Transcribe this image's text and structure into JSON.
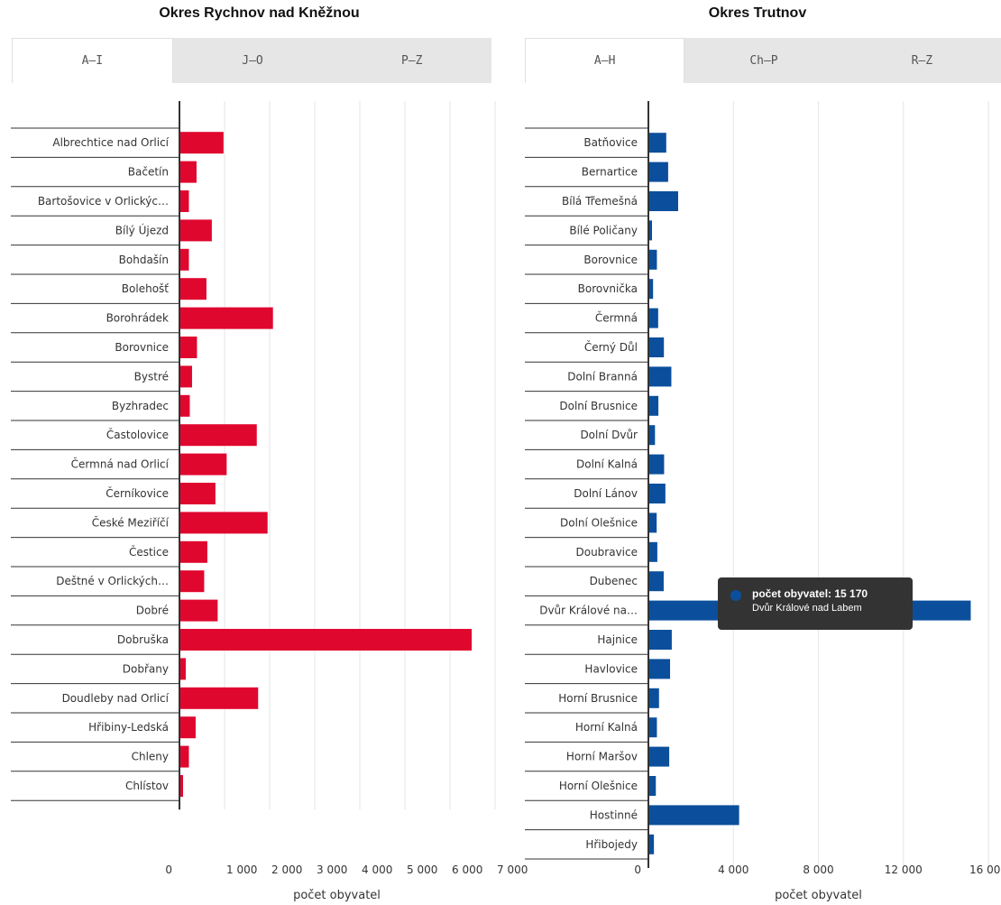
{
  "panels": [
    {
      "title": "Okres Rychnov nad Kněžnou",
      "tabs": [
        "A–I",
        "J–O",
        "P–Z"
      ],
      "active_tab": 0
    },
    {
      "title": "Okres Trutnov",
      "tabs": [
        "A–H",
        "Ch–P",
        "R–Z"
      ],
      "active_tab": 0
    }
  ],
  "tooltip": {
    "label": "počet obyvatel: 15 170",
    "name": "Dvůr Králové nad Labem"
  },
  "chart_data": [
    {
      "type": "bar",
      "orientation": "horizontal",
      "title": "Okres Rychnov nad Kněžnou",
      "xlabel": "počet obyvatel",
      "xlim": [
        0,
        7000
      ],
      "xticks": [
        "0",
        "1 000",
        "2 000",
        "3 000",
        "4 000",
        "5 000",
        "6 000",
        "7 000"
      ],
      "grid": true,
      "color": "#e0072f",
      "categories": [
        "Albrechtice nad Orlicí",
        "Bačetín",
        "Bartošovice v Orlickýc…",
        "Bílý Újezd",
        "Bohdašín",
        "Bolehošť",
        "Borohrádek",
        "Borovnice",
        "Bystré",
        "Byzhradec",
        "Častolovice",
        "Čermná nad Orlicí",
        "Černíkovice",
        "České Meziříčí",
        "Čestice",
        "Deštné v Orlických…",
        "Dobré",
        "Dobruška",
        "Dobřany",
        "Doudleby nad Orlicí",
        "Hřibiny-Ledská",
        "Chleny",
        "Chlístov"
      ],
      "values": [
        980,
        380,
        210,
        720,
        210,
        600,
        2080,
        390,
        280,
        230,
        1720,
        1050,
        800,
        1960,
        620,
        550,
        850,
        6500,
        140,
        1750,
        360,
        210,
        80
      ]
    },
    {
      "type": "bar",
      "orientation": "horizontal",
      "title": "Okres Trutnov",
      "xlabel": "počet obyvatel",
      "xlim": [
        0,
        16000
      ],
      "xticks": [
        "0",
        "4 000",
        "8 000",
        "12 000",
        "16 000"
      ],
      "grid": true,
      "color": "#0b4f9c",
      "categories": [
        "Batňovice",
        "Bernartice",
        "Bílá Třemešná",
        "Bílé Poličany",
        "Borovnice",
        "Borovnička",
        "Čermná",
        "Černý Důl",
        "Dolní Branná",
        "Dolní Brusnice",
        "Dolní Dvůr",
        "Dolní Kalná",
        "Dolní Lánov",
        "Dolní Olešnice",
        "Doubravice",
        "Dubenec",
        "Dvůr Králové na…",
        "Hajnice",
        "Havlovice",
        "Horní Brusnice",
        "Horní Kalná",
        "Horní Maršov",
        "Horní Olešnice",
        "Hostinné",
        "Hřibojedy"
      ],
      "values": [
        840,
        930,
        1400,
        170,
        400,
        220,
        460,
        730,
        1080,
        470,
        310,
        740,
        800,
        390,
        420,
        720,
        15170,
        1100,
        1020,
        500,
        400,
        980,
        350,
        4270,
        260
      ]
    }
  ]
}
